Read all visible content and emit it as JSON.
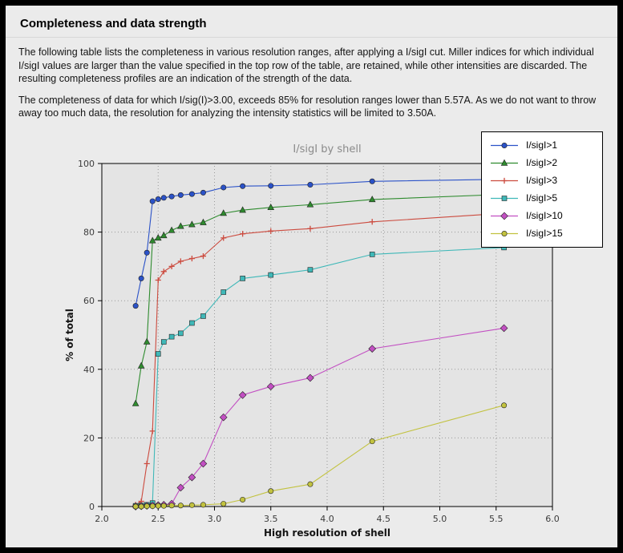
{
  "header": {
    "title": "Completeness and data strength"
  },
  "body": {
    "paragraph1": "The following table lists the completeness in various resolution ranges, after applying a I/sigI cut. Miller indices for which individual I/sigI values are larger than the value specified in the top row of the table, are retained, while other intensities are discarded. The resulting completeness profiles are an indication of the strength of the data.",
    "paragraph2": "The completeness of data for which I/sig(I)>3.00, exceeds  85% for resolution ranges lower than 5.57A. As we do not want to throw away too much data, the resolution for analyzing the intensity statistics will be limited to 3.50A."
  },
  "chart_data": {
    "type": "line",
    "title": "I/sigI by shell",
    "xlabel": "High resolution of shell",
    "ylabel": "% of total",
    "xlim": [
      2.0,
      6.0
    ],
    "ylim": [
      0,
      100
    ],
    "xticks": [
      2.0,
      2.5,
      3.0,
      3.5,
      4.0,
      4.5,
      5.0,
      5.5,
      6.0
    ],
    "yticks": [
      0,
      20,
      40,
      60,
      80,
      100
    ],
    "grid": true,
    "legend_position": "top-right",
    "x": [
      2.3,
      2.35,
      2.4,
      2.45,
      2.5,
      2.55,
      2.62,
      2.7,
      2.8,
      2.9,
      3.08,
      3.25,
      3.5,
      3.85,
      4.4,
      5.57
    ],
    "series": [
      {
        "name": "I/sigI>1",
        "color": "#2b52c8",
        "marker": "circle",
        "values": [
          58.5,
          66.5,
          74.0,
          89.0,
          89.6,
          90.0,
          90.4,
          90.8,
          91.1,
          91.5,
          93.0,
          93.4,
          93.5,
          93.8,
          94.8,
          95.4
        ]
      },
      {
        "name": "I/sigI>2",
        "color": "#2e8b2e",
        "marker": "triangle",
        "values": [
          30.0,
          41.0,
          48.0,
          77.5,
          78.3,
          79.0,
          80.5,
          81.7,
          82.2,
          82.8,
          85.5,
          86.4,
          87.2,
          88.0,
          89.5,
          91.0
        ]
      },
      {
        "name": "I/sigI>3",
        "color": "#cc4b3f",
        "marker": "plus",
        "values": [
          0.5,
          1.5,
          12.5,
          22.0,
          66.0,
          68.5,
          70.0,
          71.5,
          72.3,
          73.0,
          78.3,
          79.5,
          80.3,
          81.0,
          83.0,
          85.5
        ]
      },
      {
        "name": "I/sigI>5",
        "color": "#3fb8b8",
        "marker": "square",
        "values": [
          0.2,
          0.3,
          0.5,
          1.0,
          44.5,
          48.0,
          49.5,
          50.5,
          53.5,
          55.5,
          62.5,
          66.5,
          67.5,
          69.0,
          73.5,
          75.5
        ]
      },
      {
        "name": "I/sigI>10",
        "color": "#c24fc2",
        "marker": "diamond",
        "values": [
          0.0,
          0.1,
          0.2,
          0.3,
          0.4,
          0.5,
          0.8,
          5.5,
          8.5,
          12.5,
          26.0,
          32.5,
          35.0,
          37.5,
          46.0,
          52.0
        ]
      },
      {
        "name": "I/sigI>15",
        "color": "#c2c23f",
        "marker": "circle",
        "values": [
          0.0,
          0.0,
          0.1,
          0.1,
          0.2,
          0.2,
          0.3,
          0.3,
          0.4,
          0.5,
          0.8,
          2.0,
          4.5,
          6.5,
          19.0,
          29.5
        ]
      }
    ]
  }
}
